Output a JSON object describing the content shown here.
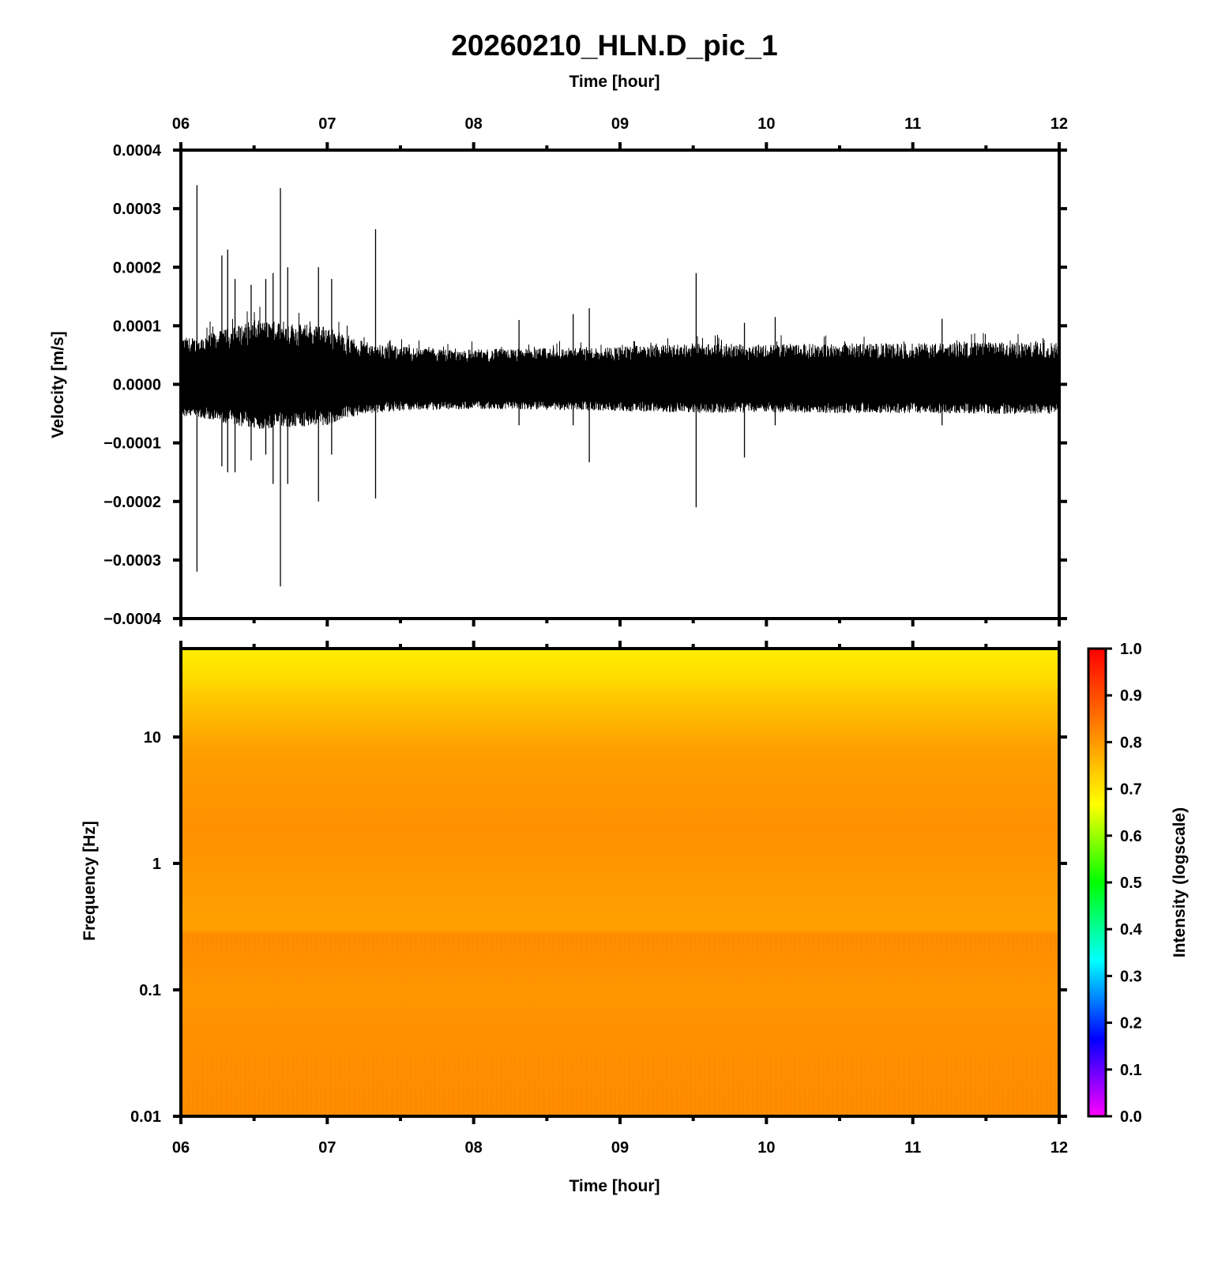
{
  "title": "20260210_HLN.D_pic_1",
  "chart_data": [
    {
      "type": "line",
      "name": "waveform",
      "xlabel": "Time [hour]",
      "ylabel": "Velocity [m/s]",
      "xlim": [
        6,
        12
      ],
      "ylim": [
        -0.0004,
        0.0004
      ],
      "x_ticks": [
        "06",
        "07",
        "08",
        "09",
        "10",
        "11",
        "12"
      ],
      "y_ticks": [
        "0.0004",
        "0.0003",
        "0.0002",
        "0.0001",
        "0.0000",
        "−0.0001",
        "−0.0002",
        "−0.0003",
        "−0.0004"
      ],
      "envelope_hours": [
        6.0,
        6.1,
        6.25,
        6.5,
        6.75,
        7.0,
        7.15,
        7.3,
        7.5,
        7.75,
        8.0,
        8.5,
        9.0,
        9.5,
        10.0,
        10.5,
        11.0,
        11.5,
        12.0
      ],
      "envelope_amplitude": [
        8e-05,
        8e-05,
        9e-05,
        0.00011,
        0.000105,
        0.0001,
        8e-05,
        7e-05,
        6.5e-05,
        6.2e-05,
        6e-05,
        6.2e-05,
        6.5e-05,
        7e-05,
        6.8e-05,
        7e-05,
        7e-05,
        7.2e-05,
        7.2e-05
      ],
      "spikes": [
        {
          "x": 6.11,
          "max": 0.00034,
          "min": -0.00032
        },
        {
          "x": 6.28,
          "max": 0.00022,
          "min": -0.00014
        },
        {
          "x": 6.32,
          "max": 0.00023,
          "min": -0.00015
        },
        {
          "x": 6.37,
          "max": 0.00018,
          "min": -0.00015
        },
        {
          "x": 6.48,
          "max": 0.00017,
          "min": -0.00013
        },
        {
          "x": 6.58,
          "max": 0.00018,
          "min": -0.00012
        },
        {
          "x": 6.63,
          "max": 0.00019,
          "min": -0.00017
        },
        {
          "x": 6.68,
          "max": 0.000335,
          "min": -0.000345
        },
        {
          "x": 6.73,
          "max": 0.0002,
          "min": -0.00017
        },
        {
          "x": 6.94,
          "max": 0.0002,
          "min": -0.0002
        },
        {
          "x": 7.03,
          "max": 0.00018,
          "min": -0.00012
        },
        {
          "x": 7.33,
          "max": 0.000265,
          "min": -0.000195
        },
        {
          "x": 8.31,
          "max": 0.00011,
          "min": -7e-05
        },
        {
          "x": 8.68,
          "max": 0.00012,
          "min": -7e-05
        },
        {
          "x": 8.79,
          "max": 0.00013,
          "min": -0.000133
        },
        {
          "x": 9.52,
          "max": 0.00019,
          "min": -0.00021
        },
        {
          "x": 9.85,
          "max": 0.000105,
          "min": -0.000125
        },
        {
          "x": 10.06,
          "max": 0.000115,
          "min": -7e-05
        },
        {
          "x": 11.2,
          "max": 0.000112,
          "min": -7e-05
        }
      ]
    },
    {
      "type": "heatmap",
      "name": "spectrogram",
      "xlabel": "Time [hour]",
      "ylabel": "Frequency [Hz]",
      "xlim": [
        6,
        12
      ],
      "ylim": [
        0.01,
        50
      ],
      "yscale": "log",
      "y_ticks": [
        "10",
        "1",
        "0.1",
        "0.01"
      ],
      "colorbar": {
        "label": "Intensity (logscale)",
        "range": [
          0.0,
          1.0
        ],
        "ticks": [
          "1.0",
          "0.9",
          "0.8",
          "0.7",
          "0.6",
          "0.5",
          "0.4",
          "0.3",
          "0.2",
          "0.1",
          "0.0"
        ],
        "stops": [
          {
            "v": 0.0,
            "color": "#ff00ff"
          },
          {
            "v": 0.166,
            "color": "#0000ff"
          },
          {
            "v": 0.333,
            "color": "#00ffff"
          },
          {
            "v": 0.5,
            "color": "#00ff00"
          },
          {
            "v": 0.666,
            "color": "#ffff00"
          },
          {
            "v": 1.0,
            "color": "#ff0000"
          }
        ]
      },
      "intensity_by_frequency": [
        {
          "f": 50,
          "v": 0.69
        },
        {
          "f": 30,
          "v": 0.71
        },
        {
          "f": 20,
          "v": 0.74
        },
        {
          "f": 12,
          "v": 0.77
        },
        {
          "f": 8,
          "v": 0.79
        },
        {
          "f": 5,
          "v": 0.8
        },
        {
          "f": 2,
          "v": 0.81
        },
        {
          "f": 1,
          "v": 0.805
        },
        {
          "f": 0.5,
          "v": 0.795
        },
        {
          "f": 0.3,
          "v": 0.79
        },
        {
          "f": 0.27,
          "v": 0.82
        },
        {
          "f": 0.1,
          "v": 0.805
        },
        {
          "f": 0.03,
          "v": 0.815
        },
        {
          "f": 0.01,
          "v": 0.82
        }
      ]
    }
  ]
}
